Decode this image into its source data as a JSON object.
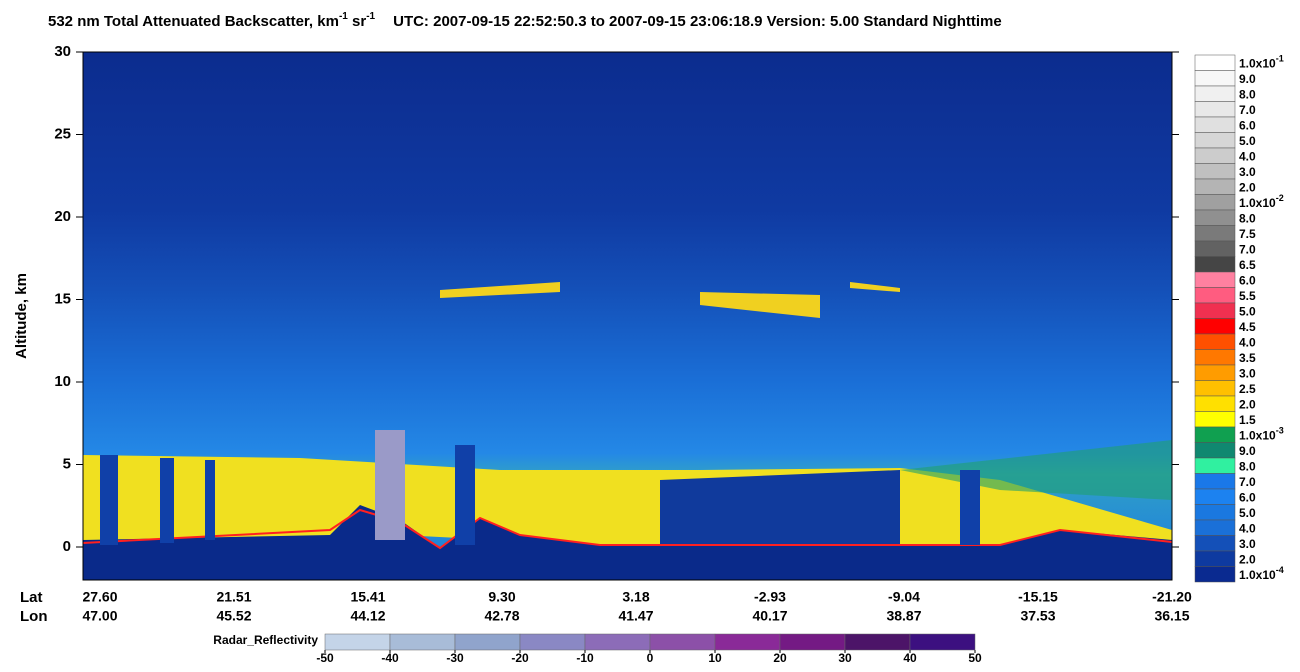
{
  "chart_data": {
    "type": "curtain",
    "title": {
      "parts": [
        "532 nm Total Attenuated Backscatter, km",
        "-1",
        " sr",
        "-1",
        "UTC:  2007-09-15 22:52:50.3  to  2007-09-15 23:06:18.9    Version: 5.00  Standard  Nighttime"
      ]
    },
    "y_label": "Altitude, km",
    "ylim": [
      -2,
      30
    ],
    "yticks": [
      0,
      5,
      10,
      15,
      20,
      25,
      30
    ],
    "x_rows": [
      {
        "name": "Lat",
        "labels": [
          "27.60",
          "21.51",
          "15.41",
          "9.30",
          "3.18",
          "-2.93",
          "-9.04",
          "-15.15",
          "-21.20"
        ]
      },
      {
        "name": "Lon",
        "labels": [
          "47.00",
          "45.52",
          "44.12",
          "42.78",
          "41.47",
          "40.17",
          "38.87",
          "37.53",
          "36.15"
        ]
      }
    ],
    "colorbar": {
      "labels": [
        {
          "text": "1.0x10",
          "sup": "-1"
        },
        {
          "text": "9.0"
        },
        {
          "text": "8.0"
        },
        {
          "text": "7.0"
        },
        {
          "text": "6.0"
        },
        {
          "text": "5.0"
        },
        {
          "text": "4.0"
        },
        {
          "text": "3.0"
        },
        {
          "text": "2.0"
        },
        {
          "text": "1.0x10",
          "sup": "-2"
        },
        {
          "text": "8.0"
        },
        {
          "text": "7.5"
        },
        {
          "text": "7.0"
        },
        {
          "text": "6.5"
        },
        {
          "text": "6.0"
        },
        {
          "text": "5.5"
        },
        {
          "text": "5.0"
        },
        {
          "text": "4.5"
        },
        {
          "text": "4.0"
        },
        {
          "text": "3.5"
        },
        {
          "text": "3.0"
        },
        {
          "text": "2.5"
        },
        {
          "text": "2.0"
        },
        {
          "text": "1.5"
        },
        {
          "text": "1.0x10",
          "sup": "-3"
        },
        {
          "text": "9.0"
        },
        {
          "text": "8.0"
        },
        {
          "text": "7.0"
        },
        {
          "text": "6.0"
        },
        {
          "text": "5.0"
        },
        {
          "text": "4.0"
        },
        {
          "text": "3.0"
        },
        {
          "text": "2.0"
        },
        {
          "text": "1.0x10",
          "sup": "-4"
        }
      ],
      "colors": [
        "#ffffff",
        "#f7f7f7",
        "#f0f0f0",
        "#e8e8e8",
        "#e0e0e0",
        "#d6d6d6",
        "#cccccc",
        "#c0c0c0",
        "#b4b4b4",
        "#a0a0a0",
        "#909090",
        "#7a7a7a",
        "#626262",
        "#454545",
        "#ff80a0",
        "#ff5c80",
        "#f03050",
        "#ff0000",
        "#ff5000",
        "#ff7800",
        "#ff9c00",
        "#ffc000",
        "#ffe000",
        "#ffff00",
        "#10a050",
        "#108870",
        "#30f0a0",
        "#1a78e8",
        "#1c82f0",
        "#1a78e0",
        "#1a70d8",
        "#1450b8",
        "#0e3aa0",
        "#0a2a90"
      ]
    },
    "radar": {
      "label": "Radar_Reflectivity",
      "lim": [
        -50,
        50
      ],
      "ticks": [
        -50,
        -40,
        -30,
        -20,
        -10,
        0,
        10,
        20,
        30,
        40,
        50
      ],
      "colors": [
        "#c4d4e8",
        "#a8bcd8",
        "#90a4cc",
        "#8a88c4",
        "#8c6cb8",
        "#8c50a8",
        "#8a2a98",
        "#741a84",
        "#4c1468",
        "#3c1080"
      ]
    }
  }
}
